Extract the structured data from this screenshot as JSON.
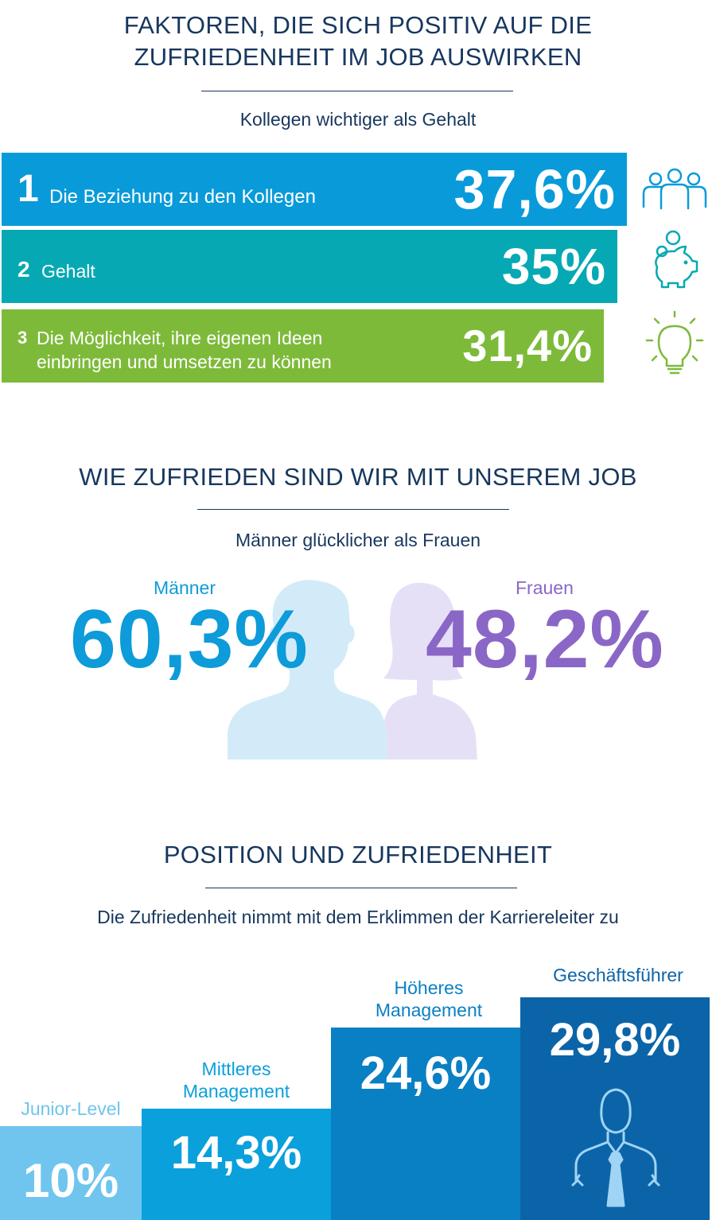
{
  "colors": {
    "navy": "#17375e",
    "bar1": "#099bd9",
    "bar2": "#06a9b3",
    "bar3": "#7dba3a",
    "men": "#0d9bd9",
    "women": "#8a67c6",
    "men_silhouette": "#d3ebf8",
    "women_silhouette": "#e6e0f7",
    "pos1": "#6fc5ee",
    "pos2": "#0aa0dc",
    "pos3": "#0a80c4",
    "pos4": "#0c64a8"
  },
  "section1": {
    "title_line1": "FAKTOREN, DIE SICH POSITIV AUF DIE",
    "title_line2": "ZUFRIEDENHEIT IM JOB AUSWIRKEN",
    "subtitle": "Kollegen wichtiger als Gehalt",
    "factors": [
      {
        "rank": "1",
        "label_line1": "Die Beziehung zu den Kollegen",
        "label_line2": "",
        "value": "37,6%",
        "icon": "people-icon"
      },
      {
        "rank": "2",
        "label_line1": "Gehalt",
        "label_line2": "",
        "value": "35%",
        "icon": "piggy-bank-icon"
      },
      {
        "rank": "3",
        "label_line1": "Die Möglichkeit, ihre eigenen Ideen",
        "label_line2": "einbringen und umsetzen zu können",
        "value": "31,4%",
        "icon": "lightbulb-icon"
      }
    ]
  },
  "section2": {
    "title": "WIE ZUFRIEDEN SIND WIR MIT UNSEREM JOB",
    "subtitle": "Männer glücklicher als Frauen",
    "men_label": "Männer",
    "men_value": "60,3%",
    "women_label": "Frauen",
    "women_value": "48,2%"
  },
  "section3": {
    "title": "POSITION UND ZUFRIEDENHEIT",
    "subtitle": "Die Zufriedenheit nimmt mit dem Erklimmen der Karriereleiter zu",
    "levels": [
      {
        "label_line1": "Junior-Level",
        "label_line2": "",
        "value": "10%"
      },
      {
        "label_line1": "Mittleres",
        "label_line2": "Management",
        "value": "14,3%"
      },
      {
        "label_line1": "Höheres",
        "label_line2": "Management",
        "value": "24,6%"
      },
      {
        "label_line1": "Geschäftsführer",
        "label_line2": "",
        "value": "29,8%"
      }
    ]
  },
  "chart_data": [
    {
      "type": "bar",
      "title": "FAKTOREN, DIE SICH POSITIV AUF DIE ZUFRIEDENHEIT IM JOB AUSWIRKEN",
      "categories": [
        "Die Beziehung zu den Kollegen",
        "Gehalt",
        "Die Möglichkeit, ihre eigenen Ideen einbringen und umsetzen zu können"
      ],
      "values": [
        37.6,
        35,
        31.4
      ]
    },
    {
      "type": "bar",
      "title": "WIE ZUFRIEDEN SIND WIR MIT UNSEREM JOB",
      "categories": [
        "Männer",
        "Frauen"
      ],
      "values": [
        60.3,
        48.2
      ]
    },
    {
      "type": "bar",
      "title": "POSITION UND ZUFRIEDENHEIT",
      "categories": [
        "Junior-Level",
        "Mittleres Management",
        "Höheres Management",
        "Geschäftsführer"
      ],
      "values": [
        10,
        14.3,
        24.6,
        29.8
      ]
    }
  ]
}
